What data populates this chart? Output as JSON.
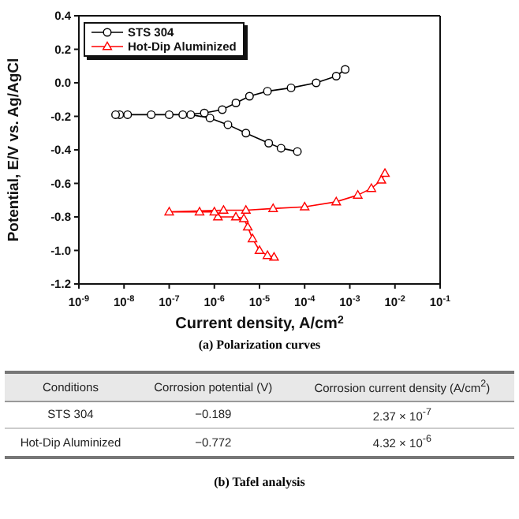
{
  "chart_data": {
    "type": "line",
    "xlabel": "Current density, A/cm$^{2}$",
    "ylabel": "Potential, E/V vs. Ag/AgCl",
    "log": "x",
    "xlim": [
      1e-09,
      0.1
    ],
    "xticks": [
      {
        "value": 1e-09,
        "label": "10$^{-9}$"
      },
      {
        "value": 1e-08,
        "label": "10$^{-8}$"
      },
      {
        "value": 1e-07,
        "label": "10$^{-7}$"
      },
      {
        "value": 1e-06,
        "label": "10$^{-6}$"
      },
      {
        "value": 1e-05,
        "label": "10$^{-5}$"
      },
      {
        "value": 0.0001,
        "label": "10$^{-4}$"
      },
      {
        "value": 0.001,
        "label": "10$^{-3}$"
      },
      {
        "value": 0.01,
        "label": "10$^{-2}$"
      },
      {
        "value": 0.1,
        "label": "10$^{-1}$"
      }
    ],
    "ylim": [
      -1.2,
      0.4
    ],
    "yticks": [
      0.4,
      0.2,
      {
        "value": 0,
        "label": "0.0"
      },
      -0.2,
      -0.4,
      -0.6,
      -0.8,
      {
        "value": -1,
        "label": "-1.0"
      },
      -1.2
    ],
    "grid": false,
    "legend": "top left",
    "line_style": "solid",
    "series": [
      {
        "name": "STS 304",
        "color": "#000000",
        "marker": "circle",
        "x": [
          6.9e-05,
          3e-05,
          1.6e-05,
          5e-06,
          2e-06,
          8e-07,
          3e-07,
          1e-07,
          4e-08,
          1.2e-08,
          8e-09,
          6.5e-09,
          2e-07,
          6e-07,
          1.5e-06,
          3e-06,
          6e-06,
          1.5e-05,
          5e-05,
          0.00018,
          0.0005,
          0.00079
        ],
        "values": [
          -0.41,
          -0.39,
          -0.36,
          -0.3,
          -0.25,
          -0.21,
          -0.19,
          -0.19,
          -0.19,
          -0.19,
          -0.19,
          -0.19,
          -0.19,
          -0.18,
          -0.16,
          -0.12,
          -0.08,
          -0.05,
          -0.03,
          0,
          0.04,
          0.08
        ]
      },
      {
        "name": "Hot-Dip Aluminized",
        "color": "#ff0000",
        "marker": "triangle",
        "x": [
          2.1e-05,
          1.5e-05,
          1e-05,
          7e-06,
          5.5e-06,
          4.5e-06,
          3e-06,
          1.2e-06,
          1e-06,
          4.7e-07,
          1e-07,
          1.6e-06,
          5e-06,
          2e-05,
          0.0001,
          0.0005,
          0.0015,
          0.003,
          0.005,
          0.006
        ],
        "values": [
          -1.04,
          -1.03,
          -1,
          -0.93,
          -0.86,
          -0.81,
          -0.8,
          -0.8,
          -0.77,
          -0.77,
          -0.77,
          -0.76,
          -0.76,
          -0.75,
          -0.74,
          -0.71,
          -0.67,
          -0.63,
          -0.58,
          -0.54
        ]
      }
    ],
    "annotations": [
      "(a) Polarization curves",
      "Conditions",
      "Corrosion potential (V)",
      "Corrosion current density (A/cm$^{2}$)",
      "STS 304",
      "−0.189",
      "2.37 × 10$^{-7}$",
      "Hot-Dip Aluminized",
      "−0.772",
      "4.32 × 10$^{-6}$",
      "(b) Tafel analysis"
    ]
  }
}
